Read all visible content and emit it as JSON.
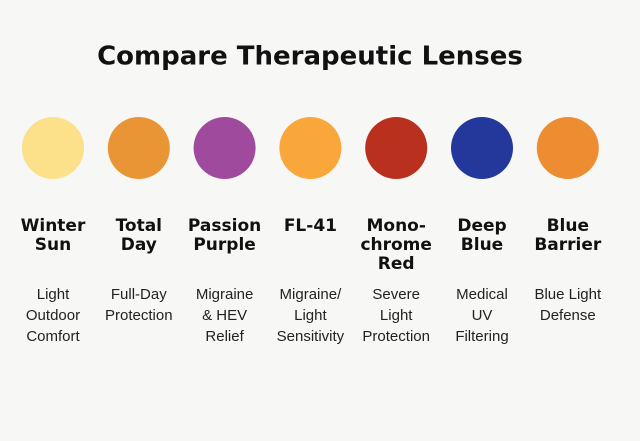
{
  "title": "Compare Therapeutic Lenses",
  "lenses": [
    {
      "name": [
        "Winter",
        "Sun"
      ],
      "description": [
        "Light",
        "Outdoor",
        "Comfort"
      ],
      "color": "#fde08a"
    },
    {
      "name": [
        "Total",
        "Day"
      ],
      "description": [
        "Full-Day",
        "Protection"
      ],
      "color": "#ea9535"
    },
    {
      "name": [
        "Passion",
        "Purple"
      ],
      "description": [
        "Migraine",
        "& HEV",
        "Relief"
      ],
      "color": "#a04a9e"
    },
    {
      "name": [
        "FL-41"
      ],
      "description": [
        "Migraine/",
        "Light",
        "Sensitivity"
      ],
      "color": "#f9a63a"
    },
    {
      "name": [
        "Mono-",
        "chrome",
        "Red"
      ],
      "description": [
        "Severe",
        "Light",
        "Protection"
      ],
      "color": "#b9301f"
    },
    {
      "name": [
        "Deep",
        "Blue"
      ],
      "description": [
        "Medical",
        "UV",
        "Filtering"
      ],
      "color": "#23389a"
    },
    {
      "name": [
        "Blue",
        "Barrier"
      ],
      "description": [
        "Blue Light",
        "Defense"
      ],
      "color": "#ee8c31"
    }
  ]
}
